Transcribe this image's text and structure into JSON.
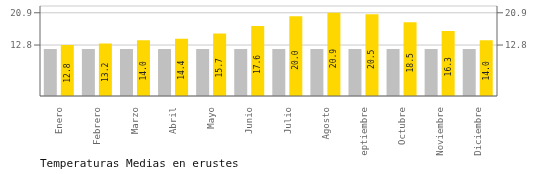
{
  "chart_data": {
    "type": "bar",
    "title": "Temperaturas Medias en erustes",
    "categories": [
      "Enero",
      "Febrero",
      "Marzo",
      "Abril",
      "Mayo",
      "Junio",
      "Julio",
      "Agosto",
      "Septiembre",
      "Octubre",
      "Noviembre",
      "Diciembre"
    ],
    "series": [
      {
        "color": "#C0C0C0",
        "values": [
          11.8,
          11.8,
          11.8,
          11.8,
          11.8,
          11.8,
          11.8,
          11.8,
          11.8,
          11.8,
          11.8,
          11.8
        ]
      },
      {
        "color": "#FFD700",
        "values": [
          12.8,
          13.2,
          14.0,
          14.4,
          15.7,
          17.6,
          20.0,
          20.9,
          20.5,
          18.5,
          16.3,
          14.0
        ],
        "value_labels": [
          "12.8",
          "13.2",
          "14.0",
          "14.4",
          "15.7",
          "17.6",
          "20.0",
          "20.9",
          "20.5",
          "18.5",
          "16.3",
          "14.0"
        ],
        "data_labels": true
      }
    ],
    "ylim": [
      0,
      22.6
    ],
    "yticks": [
      12.8,
      20.9
    ],
    "y2lim": [
      0,
      22.6
    ],
    "y2ticks": [
      12.8,
      20.9
    ],
    "grid": true
  }
}
